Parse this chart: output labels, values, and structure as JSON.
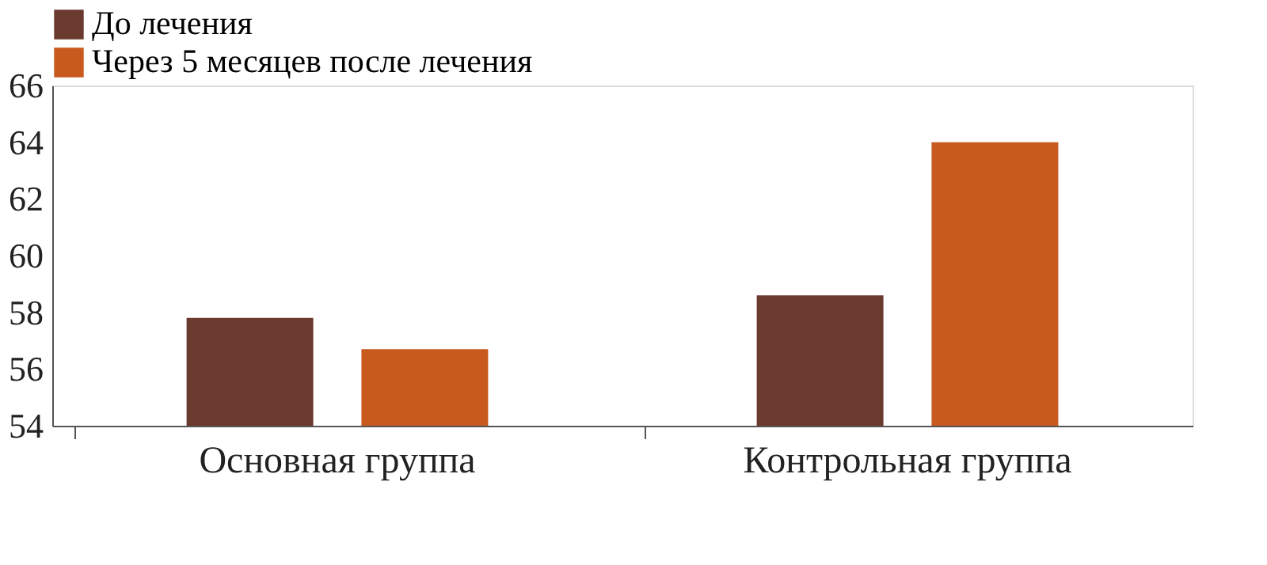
{
  "chart_data": {
    "type": "bar",
    "categories": [
      "Основная группа",
      "Контрольная группа"
    ],
    "series": [
      {
        "name": "До лечения",
        "color": "#6b3a2e",
        "values": [
          57.8,
          58.6
        ]
      },
      {
        "name": "Через 5 месяцев после лечения",
        "color": "#c85a1e",
        "values": [
          56.7,
          64.0
        ]
      }
    ],
    "ylim": [
      54,
      66
    ],
    "yticks": [
      54,
      56,
      58,
      60,
      62,
      64,
      66
    ],
    "grid": false,
    "legend": "top"
  }
}
